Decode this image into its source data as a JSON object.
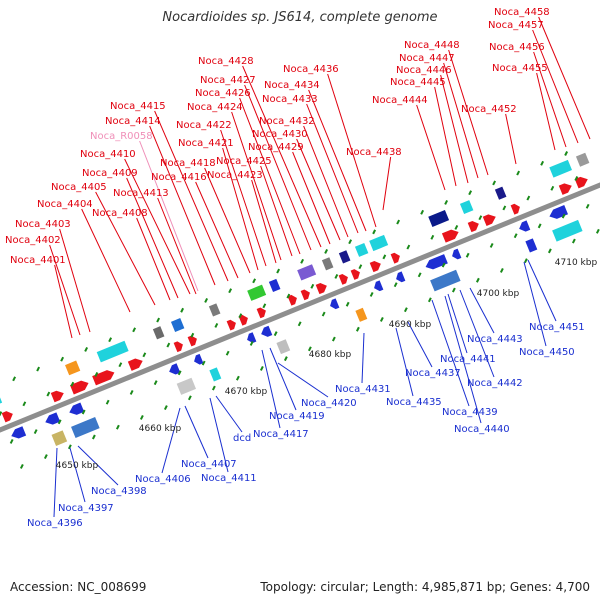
{
  "title": "Nocardioides sp. JS614, complete genome",
  "footer": {
    "accession": "Accession: NC_008699",
    "topology": "Topology: circular; Length: 4,985,871 bp; Genes: 4,700"
  },
  "colors": {
    "forward_label": "#e0000e",
    "reverse_label": "#1a2fd0",
    "rna_label": "#f08fb8",
    "backbone": "#8e8e8e",
    "tick": "#1a8a1a"
  },
  "scale_labels": [
    {
      "text": "4650 kbp",
      "kbp": 4650
    },
    {
      "text": "4660 kbp",
      "kbp": 4660
    },
    {
      "text": "4670 kbp",
      "kbp": 4670
    },
    {
      "text": "4680 kbp",
      "kbp": 4680
    },
    {
      "text": "4690 kbp",
      "kbp": 4690
    },
    {
      "text": "4700 kbp",
      "kbp": 4700
    },
    {
      "text": "4710 kbp",
      "kbp": 4710
    }
  ],
  "forward_genes": [
    "Noca_4401",
    "Noca_4402",
    "Noca_4403",
    "Noca_4404",
    "Noca_4405",
    "Noca_4408",
    "Noca_4409",
    "Noca_4410",
    "Noca_R0058",
    "Noca_4413",
    "Noca_4414",
    "Noca_4415",
    "Noca_4416",
    "Noca_4418",
    "Noca_4421",
    "Noca_4422",
    "Noca_4423",
    "Noca_4424",
    "Noca_4425",
    "Noca_4426",
    "Noca_4427",
    "Noca_4428",
    "Noca_4429",
    "Noca_4430",
    "Noca_4432",
    "Noca_4433",
    "Noca_4434",
    "Noca_4436",
    "Noca_4438",
    "Noca_4444",
    "Noca_4445",
    "Noca_4446",
    "Noca_4447",
    "Noca_4448",
    "Noca_4452",
    "Noca_4455",
    "Noca_4456",
    "Noca_4457",
    "Noca_4458"
  ],
  "reverse_genes": [
    "Noca_4396",
    "Noca_4397",
    "Noca_4398",
    "Noca_4406",
    "Noca_4407",
    "dcd",
    "Noca_4411",
    "Noca_4417",
    "Noca_4419",
    "Noca_4420",
    "Noca_4431",
    "Noca_4435",
    "Noca_4437",
    "Noca_4439",
    "Noca_4440",
    "Noca_4441",
    "Noca_4442",
    "Noca_4443",
    "Noca_4450",
    "Noca_4451"
  ]
}
